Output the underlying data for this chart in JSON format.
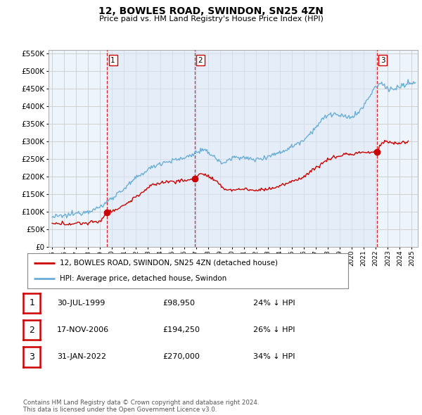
{
  "title": "12, BOWLES ROAD, SWINDON, SN25 4ZN",
  "subtitle": "Price paid vs. HM Land Registry's House Price Index (HPI)",
  "background_color": "#ffffff",
  "chart_bg_color": "#eef4fb",
  "grid_color": "#cccccc",
  "hpi_color": "#6baed6",
  "price_color": "#cc0000",
  "vline_color": "#cc0000",
  "shade_color": "#ddeaf7",
  "sale_points": [
    {
      "date_num": 1999.58,
      "price": 98950,
      "label": "1"
    },
    {
      "date_num": 2006.88,
      "price": 194250,
      "label": "2"
    },
    {
      "date_num": 2022.08,
      "price": 270000,
      "label": "3"
    }
  ],
  "legend_entries": [
    {
      "label": "12, BOWLES ROAD, SWINDON, SN25 4ZN (detached house)",
      "color": "#cc0000"
    },
    {
      "label": "HPI: Average price, detached house, Swindon",
      "color": "#6baed6"
    }
  ],
  "table_rows": [
    {
      "num": "1",
      "date": "30-JUL-1999",
      "price": "£98,950",
      "hpi": "24% ↓ HPI"
    },
    {
      "num": "2",
      "date": "17-NOV-2006",
      "price": "£194,250",
      "hpi": "26% ↓ HPI"
    },
    {
      "num": "3",
      "date": "31-JAN-2022",
      "price": "£270,000",
      "hpi": "34% ↓ HPI"
    }
  ],
  "footnote": "Contains HM Land Registry data © Crown copyright and database right 2024.\nThis data is licensed under the Open Government Licence v3.0.",
  "ylim": [
    0,
    560000
  ],
  "yticks": [
    0,
    50000,
    100000,
    150000,
    200000,
    250000,
    300000,
    350000,
    400000,
    450000,
    500000,
    550000
  ],
  "xlim_start": 1994.7,
  "xlim_end": 2025.5,
  "xtick_years": [
    1995,
    1996,
    1997,
    1998,
    1999,
    2000,
    2001,
    2002,
    2003,
    2004,
    2005,
    2006,
    2007,
    2008,
    2009,
    2010,
    2011,
    2012,
    2013,
    2014,
    2015,
    2016,
    2017,
    2018,
    2019,
    2020,
    2021,
    2022,
    2023,
    2024,
    2025
  ]
}
